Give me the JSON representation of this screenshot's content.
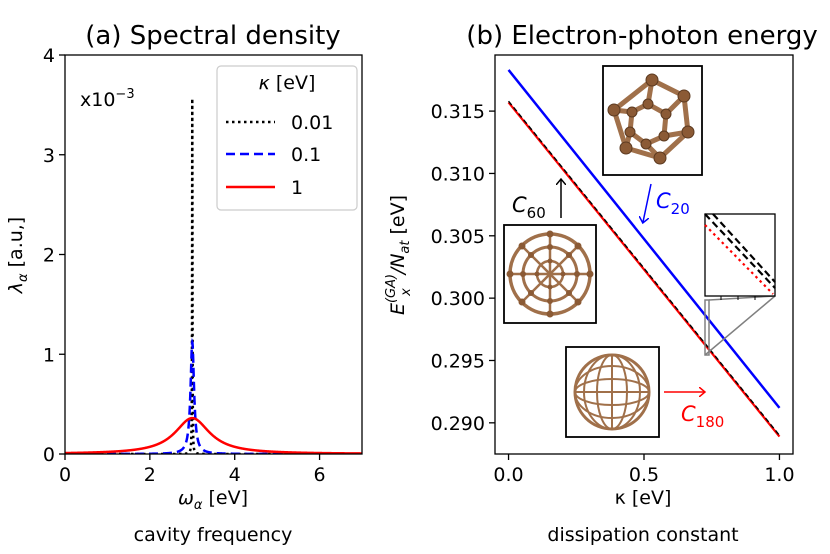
{
  "chart_data": [
    {
      "type": "line",
      "title": "(a) Spectral density",
      "xlabel": "ω",
      "xlabel_sub": "α",
      "xlabel_unit": " [eV]",
      "xlabel2": "cavity frequency",
      "ylabel": "λ",
      "ylabel_sub": "α",
      "ylabel_unit": " [a.u,]",
      "scale_base": "x10",
      "scale_exp": "−3",
      "xlim": [
        0,
        7
      ],
      "ylim": [
        0,
        4
      ],
      "xticks": [
        "0",
        "2",
        "4",
        "6"
      ],
      "xtick_values": [
        0,
        2,
        4,
        6
      ],
      "yticks": [
        "0",
        "1",
        "2",
        "3",
        "4"
      ],
      "ytick_values": [
        0,
        1,
        2,
        3,
        4
      ],
      "legend_title": "κ",
      "legend_title_unit": " [eV]",
      "legend_position": "top-right",
      "omega0": 3.0,
      "series": [
        {
          "name": "0.01",
          "kappa": 0.01,
          "peak": 3.6,
          "color": "#000000",
          "style": "dotted"
        },
        {
          "name": "0.1",
          "kappa": 0.1,
          "peak": 1.12,
          "color": "#0000ff",
          "style": "dashed"
        },
        {
          "name": "1",
          "kappa": 1.0,
          "peak": 0.36,
          "color": "#ff0000",
          "style": "solid"
        }
      ]
    },
    {
      "type": "line",
      "title": "(b) Electron-photon energy",
      "xlabel": "κ [eV]",
      "xlabel2": "dissipation constant",
      "ylabel_main": "E",
      "ylabel_sup": "(GA)",
      "ylabel_sub": "x",
      "ylabel_rest": "/N",
      "ylabel_sub2": "at",
      "ylabel_unit": " [eV]",
      "xlim": [
        -0.05,
        1.05
      ],
      "ylim": [
        0.2875,
        0.3195
      ],
      "xticks": [
        "0.0",
        "0.5",
        "1.0"
      ],
      "xtick_values": [
        0.0,
        0.5,
        1.0
      ],
      "yticks": [
        "0.290",
        "0.295",
        "0.300",
        "0.305",
        "0.310",
        "0.315"
      ],
      "ytick_values": [
        0.29,
        0.295,
        0.3,
        0.305,
        0.31,
        0.315
      ],
      "series": [
        {
          "name": "C20",
          "x": [
            0.0,
            1.0
          ],
          "y": [
            0.3183,
            0.2912
          ],
          "color": "#0000ff",
          "style": "solid"
        },
        {
          "name": "C60",
          "x": [
            0.0,
            1.0
          ],
          "y": [
            0.3158,
            0.289
          ],
          "color": "#000000",
          "style": "dashed"
        },
        {
          "name": "C180",
          "x": [
            0.0,
            1.0
          ],
          "y": [
            0.3157,
            0.2889
          ],
          "color": "#ff0000",
          "style": "dotted-solid"
        }
      ],
      "annotations": {
        "c60_base": "C",
        "c60_sub": "60",
        "c20_base": "C",
        "c20_sub": "20",
        "c180_base": "C",
        "c180_sub": "180"
      }
    }
  ]
}
